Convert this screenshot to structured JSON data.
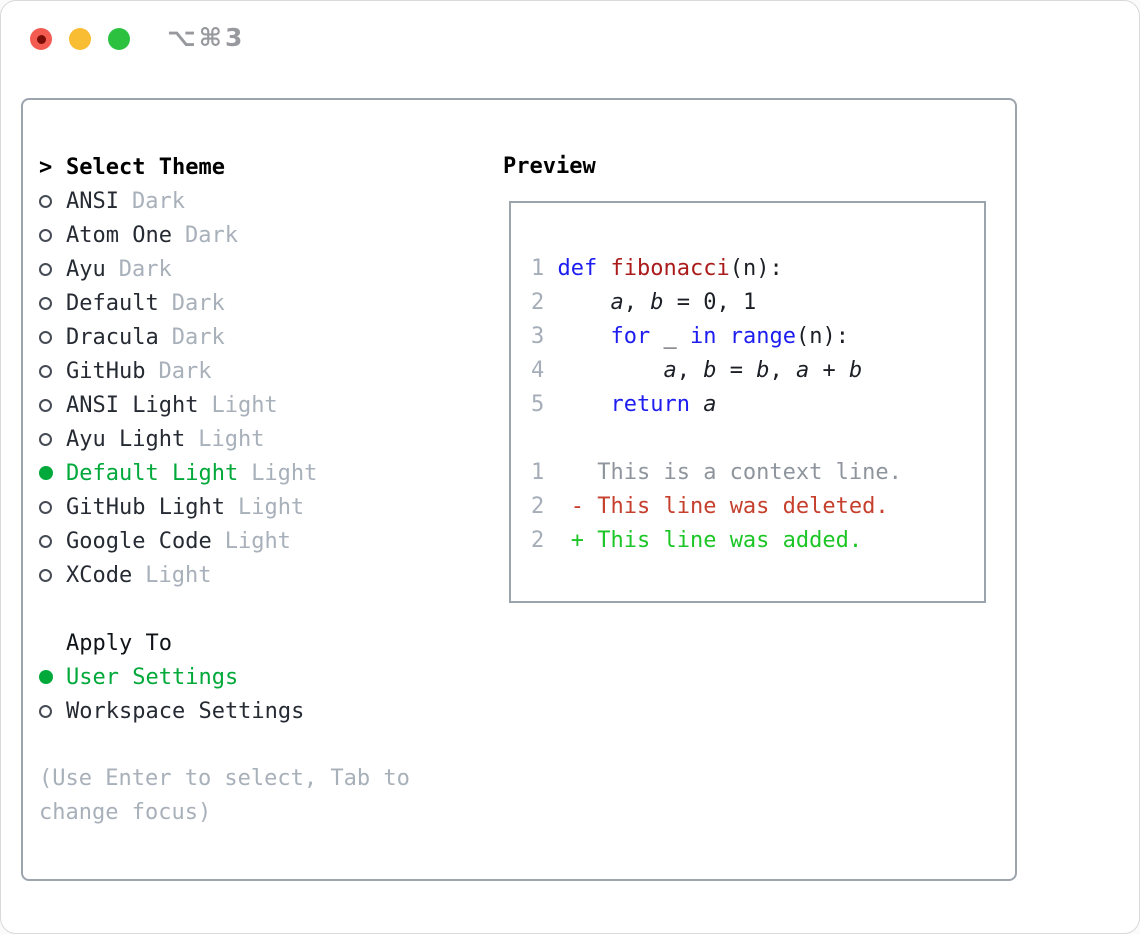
{
  "window": {
    "title_shortcut": "⌥⌘3",
    "traffic_lights": {
      "close": "#f45b50",
      "minimize": "#f9bd33",
      "zoom": "#2cc23f"
    }
  },
  "theme_picker": {
    "prompt": ">",
    "header": "Select Theme",
    "themes": [
      {
        "name": "ANSI",
        "tag": "Dark",
        "selected": false
      },
      {
        "name": "Atom One",
        "tag": "Dark",
        "selected": false
      },
      {
        "name": "Ayu",
        "tag": "Dark",
        "selected": false
      },
      {
        "name": "Default",
        "tag": "Dark",
        "selected": false
      },
      {
        "name": "Dracula",
        "tag": "Dark",
        "selected": false
      },
      {
        "name": "GitHub",
        "tag": "Dark",
        "selected": false
      },
      {
        "name": "ANSI Light",
        "tag": "Light",
        "selected": false
      },
      {
        "name": "Ayu Light",
        "tag": "Light",
        "selected": false
      },
      {
        "name": "Default Light",
        "tag": "Light",
        "selected": true
      },
      {
        "name": "GitHub Light",
        "tag": "Light",
        "selected": false
      },
      {
        "name": "Google Code",
        "tag": "Light",
        "selected": false
      },
      {
        "name": "XCode",
        "tag": "Light",
        "selected": false
      }
    ],
    "apply_to": {
      "header": "Apply To",
      "options": [
        {
          "label": "User Settings",
          "selected": true
        },
        {
          "label": "Workspace Settings",
          "selected": false
        }
      ]
    },
    "hint": "(Use Enter to select, Tab to change focus)"
  },
  "preview": {
    "header": "Preview",
    "lines": [
      {
        "segs": [
          {
            "t": "1",
            "s": "num"
          },
          {
            "t": " ",
            "s": "pl"
          },
          {
            "t": "def",
            "s": "kw"
          },
          {
            "t": " ",
            "s": "pl"
          },
          {
            "t": "fibonacci",
            "s": "fn"
          },
          {
            "t": "(n):",
            "s": "pl"
          }
        ]
      },
      {
        "segs": [
          {
            "t": "2",
            "s": "num"
          },
          {
            "t": "     ",
            "s": "pl"
          },
          {
            "t": "a",
            "s": "var"
          },
          {
            "t": ", ",
            "s": "pl"
          },
          {
            "t": "b",
            "s": "var"
          },
          {
            "t": " = 0, 1",
            "s": "pl"
          }
        ]
      },
      {
        "segs": [
          {
            "t": "3",
            "s": "num"
          },
          {
            "t": "     ",
            "s": "pl"
          },
          {
            "t": "for",
            "s": "kw"
          },
          {
            "t": " _ ",
            "s": "pl"
          },
          {
            "t": "in",
            "s": "kw"
          },
          {
            "t": " ",
            "s": "pl"
          },
          {
            "t": "range",
            "s": "kw"
          },
          {
            "t": "(n):",
            "s": "pl"
          }
        ]
      },
      {
        "segs": [
          {
            "t": "4",
            "s": "num"
          },
          {
            "t": "         ",
            "s": "pl"
          },
          {
            "t": "a",
            "s": "var"
          },
          {
            "t": ", ",
            "s": "pl"
          },
          {
            "t": "b",
            "s": "var"
          },
          {
            "t": " = ",
            "s": "pl"
          },
          {
            "t": "b",
            "s": "var"
          },
          {
            "t": ", ",
            "s": "pl"
          },
          {
            "t": "a",
            "s": "var"
          },
          {
            "t": " + ",
            "s": "pl"
          },
          {
            "t": "b",
            "s": "var"
          }
        ]
      },
      {
        "segs": [
          {
            "t": "5",
            "s": "num"
          },
          {
            "t": "     ",
            "s": "pl"
          },
          {
            "t": "return",
            "s": "kw"
          },
          {
            "t": " ",
            "s": "pl"
          },
          {
            "t": "a",
            "s": "var"
          }
        ]
      },
      {
        "segs": []
      },
      {
        "segs": [
          {
            "t": "1",
            "s": "num"
          },
          {
            "t": "    ",
            "s": "pl"
          },
          {
            "t": "This is a context line.",
            "s": "ctx"
          }
        ]
      },
      {
        "segs": [
          {
            "t": "2",
            "s": "num"
          },
          {
            "t": "  ",
            "s": "pl"
          },
          {
            "t": "- This line was deleted.",
            "s": "del"
          }
        ]
      },
      {
        "segs": [
          {
            "t": "2",
            "s": "num"
          },
          {
            "t": "  ",
            "s": "pl"
          },
          {
            "t": "+ This line was added.",
            "s": "add"
          }
        ]
      }
    ]
  },
  "colors": {
    "selection_green": "#00a93a",
    "added_green": "#1cc626",
    "deleted_red": "#c6402e",
    "keyword_blue": "#1d1df0",
    "function_red": "#ab1b1b",
    "context_gray": "#8f959d",
    "muted_gray": "#a8b0ba",
    "panel_border": "#9ca4ae"
  }
}
